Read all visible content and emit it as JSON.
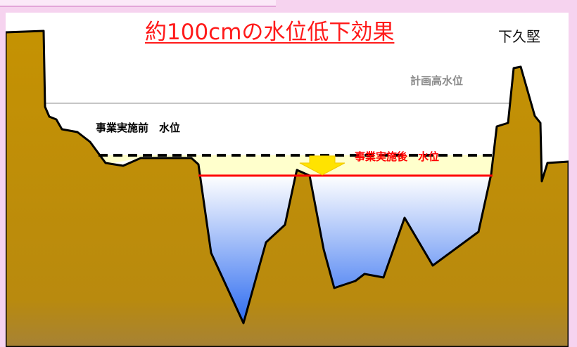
{
  "title": "約100cmの水位低下効果",
  "place_name": "下久堅",
  "labels": {
    "planned_high_water": "計画高水位",
    "before_water_level": "事業実施前　水位",
    "after_water_level": "事業実施後　水位"
  },
  "colors": {
    "title": "#ff1a1a",
    "terrain": "#c59202",
    "water_top": "#ffffff",
    "water_bottom": "#2e6cf0",
    "after_line": "#ff0000",
    "arrow": "#ffe300",
    "band": "#ffffcc",
    "planned_line": "#b3b3b3",
    "frame": "#f6d3ef"
  },
  "icons": {
    "arrow": "down-arrow-icon"
  }
}
